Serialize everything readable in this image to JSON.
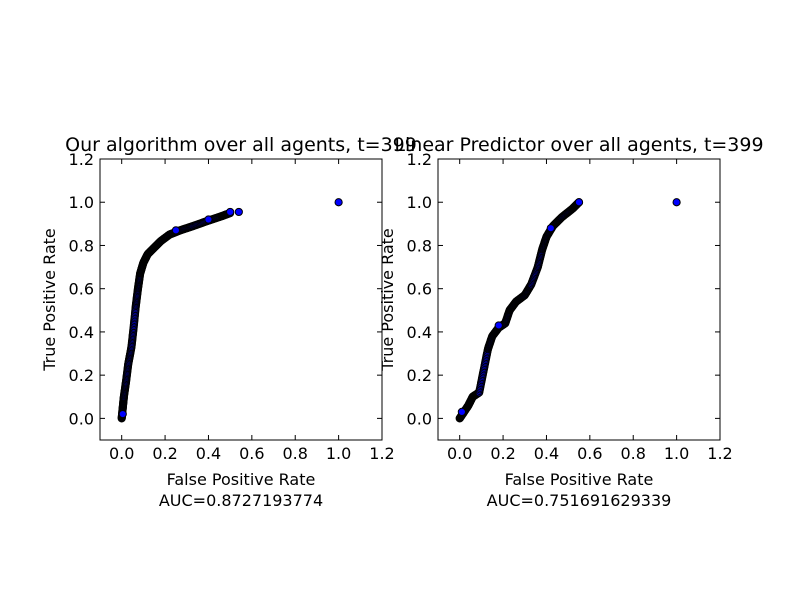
{
  "chart_data": [
    {
      "type": "scatter",
      "title": "Our algorithm over all agents, t=399",
      "xlabel": "False Positive Rate",
      "xlabel_sub": "AUC=0.8727193774",
      "ylabel": "True Positive Rate",
      "xlim": [
        -0.1,
        1.2
      ],
      "ylim": [
        -0.1,
        1.2
      ],
      "xticks": [
        "0.0",
        "0.2",
        "0.4",
        "0.6",
        "0.8",
        "1.0",
        "1.2"
      ],
      "yticks": [
        "0.0",
        "0.2",
        "0.4",
        "0.6",
        "0.8",
        "1.0",
        "1.2"
      ],
      "grid": false,
      "marker_color": "#0000ff",
      "curve": [
        [
          0.0,
          0.0
        ],
        [
          0.005,
          0.05
        ],
        [
          0.01,
          0.1
        ],
        [
          0.02,
          0.17
        ],
        [
          0.03,
          0.25
        ],
        [
          0.045,
          0.33
        ],
        [
          0.055,
          0.42
        ],
        [
          0.065,
          0.52
        ],
        [
          0.075,
          0.6
        ],
        [
          0.085,
          0.67
        ],
        [
          0.1,
          0.72
        ],
        [
          0.12,
          0.76
        ],
        [
          0.15,
          0.79
        ],
        [
          0.18,
          0.82
        ],
        [
          0.22,
          0.85
        ],
        [
          0.27,
          0.87
        ],
        [
          0.33,
          0.89
        ],
        [
          0.4,
          0.915
        ],
        [
          0.46,
          0.935
        ],
        [
          0.5,
          0.95
        ]
      ],
      "points": [
        [
          0.005,
          0.02
        ],
        [
          0.25,
          0.87
        ],
        [
          0.4,
          0.92
        ],
        [
          0.5,
          0.955
        ],
        [
          0.54,
          0.955
        ],
        [
          1.0,
          1.0
        ]
      ]
    },
    {
      "type": "scatter",
      "title": "Linear Predictor over all agents, t=399",
      "xlabel": "False Positive Rate",
      "xlabel_sub": "AUC=0.751691629339",
      "ylabel": "True Positive Rate",
      "xlim": [
        -0.1,
        1.2
      ],
      "ylim": [
        -0.1,
        1.2
      ],
      "xticks": [
        "0.0",
        "0.2",
        "0.4",
        "0.6",
        "0.8",
        "1.0",
        "1.2"
      ],
      "yticks": [
        "0.0",
        "0.2",
        "0.4",
        "0.6",
        "0.8",
        "1.0",
        "1.2"
      ],
      "grid": false,
      "marker_color": "#0000ff",
      "curve": [
        [
          0.0,
          0.0
        ],
        [
          0.02,
          0.03
        ],
        [
          0.04,
          0.06
        ],
        [
          0.06,
          0.1
        ],
        [
          0.09,
          0.12
        ],
        [
          0.11,
          0.22
        ],
        [
          0.13,
          0.32
        ],
        [
          0.15,
          0.38
        ],
        [
          0.18,
          0.42
        ],
        [
          0.21,
          0.44
        ],
        [
          0.23,
          0.5
        ],
        [
          0.26,
          0.54
        ],
        [
          0.3,
          0.57
        ],
        [
          0.33,
          0.62
        ],
        [
          0.36,
          0.7
        ],
        [
          0.38,
          0.78
        ],
        [
          0.4,
          0.84
        ],
        [
          0.43,
          0.89
        ],
        [
          0.47,
          0.93
        ],
        [
          0.52,
          0.97
        ],
        [
          0.55,
          1.0
        ]
      ],
      "points": [
        [
          0.01,
          0.03
        ],
        [
          0.18,
          0.43
        ],
        [
          0.42,
          0.88
        ],
        [
          0.55,
          1.0
        ],
        [
          1.0,
          1.0
        ]
      ]
    }
  ]
}
